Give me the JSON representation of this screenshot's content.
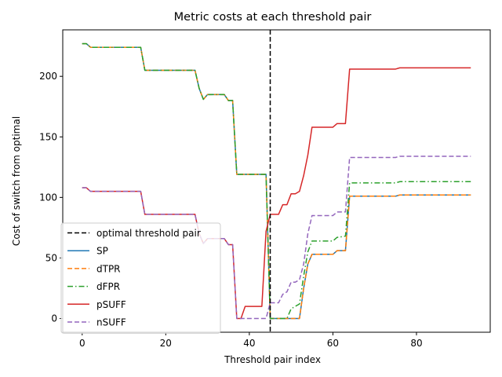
{
  "chart_data": {
    "type": "line",
    "title": "Metric costs at each threshold pair",
    "xlabel": "Threshold pair index",
    "ylabel": "Cost of switch from optimal",
    "xlim": [
      -4.65,
      97.65
    ],
    "ylim": [
      -11.35,
      238.4
    ],
    "xticks": [
      0,
      20,
      40,
      60,
      80
    ],
    "yticks": [
      0,
      50,
      100,
      150,
      200
    ],
    "grid": false,
    "legend_position": "lower-left",
    "vline": {
      "label": "optimal threshold pair",
      "x": 45,
      "color": "#000000",
      "dash": "dashed"
    },
    "series": [
      {
        "name": "SP",
        "color": "#1f77b4",
        "dash": "solid",
        "points": [
          [
            0,
            227
          ],
          [
            1,
            227
          ],
          [
            2,
            224
          ],
          [
            14,
            224
          ],
          [
            15,
            205
          ],
          [
            27,
            205
          ],
          [
            28,
            190
          ],
          [
            29,
            181
          ],
          [
            30,
            185
          ],
          [
            34,
            185
          ],
          [
            35,
            180
          ],
          [
            36,
            180
          ],
          [
            37,
            119
          ],
          [
            44,
            119
          ],
          [
            45,
            0
          ],
          [
            52,
            0
          ],
          [
            53,
            25
          ],
          [
            54,
            45
          ],
          [
            55,
            53
          ],
          [
            60,
            53
          ],
          [
            61,
            56
          ],
          [
            63,
            56
          ],
          [
            64,
            101
          ],
          [
            75,
            101
          ],
          [
            76,
            102
          ],
          [
            93,
            102
          ]
        ]
      },
      {
        "name": "dTPR",
        "color": "#ff7f0e",
        "dash": "dashed",
        "points": [
          [
            0,
            227
          ],
          [
            1,
            227
          ],
          [
            2,
            224
          ],
          [
            14,
            224
          ],
          [
            15,
            205
          ],
          [
            27,
            205
          ],
          [
            28,
            190
          ],
          [
            29,
            181
          ],
          [
            30,
            185
          ],
          [
            34,
            185
          ],
          [
            35,
            180
          ],
          [
            36,
            180
          ],
          [
            37,
            119
          ],
          [
            44,
            119
          ],
          [
            45,
            0
          ],
          [
            52,
            0
          ],
          [
            53,
            25
          ],
          [
            54,
            45
          ],
          [
            55,
            53
          ],
          [
            60,
            53
          ],
          [
            61,
            56
          ],
          [
            63,
            56
          ],
          [
            64,
            101
          ],
          [
            75,
            101
          ],
          [
            76,
            102
          ],
          [
            93,
            102
          ]
        ]
      },
      {
        "name": "dFPR",
        "color": "#2ca02c",
        "dash": "dashdot",
        "points": [
          [
            0,
            227
          ],
          [
            1,
            227
          ],
          [
            2,
            224
          ],
          [
            14,
            224
          ],
          [
            15,
            205
          ],
          [
            27,
            205
          ],
          [
            28,
            190
          ],
          [
            29,
            181
          ],
          [
            30,
            185
          ],
          [
            34,
            185
          ],
          [
            35,
            180
          ],
          [
            36,
            180
          ],
          [
            37,
            119
          ],
          [
            44,
            119
          ],
          [
            45,
            0
          ],
          [
            48,
            0
          ],
          [
            49,
            0
          ],
          [
            50,
            8
          ],
          [
            51,
            10
          ],
          [
            52,
            12
          ],
          [
            53,
            35
          ],
          [
            54,
            55
          ],
          [
            55,
            64
          ],
          [
            60,
            64
          ],
          [
            61,
            67
          ],
          [
            63,
            68
          ],
          [
            64,
            112
          ],
          [
            75,
            112
          ],
          [
            76,
            113
          ],
          [
            93,
            113
          ]
        ]
      },
      {
        "name": "pSUFF",
        "color": "#d62728",
        "dash": "solid",
        "points": [
          [
            0,
            108
          ],
          [
            1,
            108
          ],
          [
            2,
            105
          ],
          [
            14,
            105
          ],
          [
            15,
            86
          ],
          [
            27,
            86
          ],
          [
            28,
            70
          ],
          [
            29,
            62
          ],
          [
            30,
            66
          ],
          [
            34,
            66
          ],
          [
            35,
            61
          ],
          [
            36,
            61
          ],
          [
            37,
            0
          ],
          [
            38,
            0
          ],
          [
            39,
            10
          ],
          [
            43,
            10
          ],
          [
            44,
            72
          ],
          [
            45,
            86
          ],
          [
            47,
            86
          ],
          [
            48,
            94
          ],
          [
            49,
            94
          ],
          [
            50,
            103
          ],
          [
            51,
            103
          ],
          [
            52,
            105
          ],
          [
            53,
            118
          ],
          [
            54,
            135
          ],
          [
            55,
            158
          ],
          [
            60,
            158
          ],
          [
            61,
            161
          ],
          [
            63,
            161
          ],
          [
            64,
            206
          ],
          [
            75,
            206
          ],
          [
            76,
            207
          ],
          [
            93,
            207
          ]
        ]
      },
      {
        "name": "nSUFF",
        "color": "#9467bd",
        "dash": "dashed",
        "points": [
          [
            0,
            108
          ],
          [
            1,
            108
          ],
          [
            2,
            105
          ],
          [
            14,
            105
          ],
          [
            15,
            86
          ],
          [
            27,
            86
          ],
          [
            28,
            70
          ],
          [
            29,
            62
          ],
          [
            30,
            66
          ],
          [
            34,
            66
          ],
          [
            35,
            61
          ],
          [
            36,
            61
          ],
          [
            37,
            0
          ],
          [
            44,
            0
          ],
          [
            45,
            13
          ],
          [
            47,
            13
          ],
          [
            48,
            20
          ],
          [
            49,
            22
          ],
          [
            50,
            30
          ],
          [
            51,
            30
          ],
          [
            52,
            32
          ],
          [
            53,
            45
          ],
          [
            54,
            70
          ],
          [
            55,
            85
          ],
          [
            60,
            85
          ],
          [
            61,
            88
          ],
          [
            63,
            88
          ],
          [
            64,
            133
          ],
          [
            75,
            133
          ],
          [
            76,
            134
          ],
          [
            93,
            134
          ]
        ]
      }
    ]
  }
}
